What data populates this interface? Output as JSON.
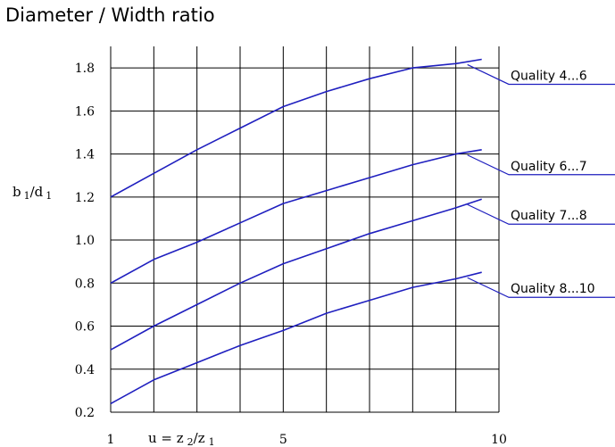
{
  "chart_data": {
    "type": "line",
    "title": "Diameter / Width ratio",
    "ylabel": {
      "main1": "b",
      "sub1": "1",
      "slash": "/d",
      "sub2": "1"
    },
    "xlabel": {
      "prefix": "u = z",
      "sub1": "2",
      "mid": "/z",
      "sub2": "1"
    },
    "x_tick_labels": [
      {
        "x": 1,
        "label": "1"
      },
      {
        "x": 5,
        "label": "5"
      },
      {
        "x": 10,
        "label": "10"
      }
    ],
    "y_tick_labels": [
      "1.8",
      "1.6",
      "1.4",
      "1.2",
      "1.0",
      "0.8",
      "0.6",
      "0.4",
      "0.2"
    ],
    "y_ticks": [
      1.8,
      1.6,
      1.4,
      1.2,
      1.0,
      0.8,
      0.6,
      0.4,
      0.2
    ],
    "xlim": [
      1,
      10
    ],
    "ylim": [
      0.2,
      1.9
    ],
    "x_grid": [
      1,
      2,
      3,
      4,
      5,
      6,
      7,
      8,
      9,
      10
    ],
    "grid": true,
    "series": [
      {
        "name": "Quality  4...6",
        "x": [
          1,
          2,
          3,
          4,
          5,
          6,
          7,
          8,
          9,
          9.6
        ],
        "values": [
          1.2,
          1.31,
          1.42,
          1.52,
          1.62,
          1.69,
          1.75,
          1.8,
          1.82,
          1.84
        ]
      },
      {
        "name": "Quality  6...7",
        "x": [
          1,
          2,
          3,
          4,
          5,
          6,
          7,
          8,
          9,
          9.6
        ],
        "values": [
          0.8,
          0.91,
          0.99,
          1.08,
          1.17,
          1.23,
          1.29,
          1.35,
          1.4,
          1.42
        ]
      },
      {
        "name": "Quality  7...8",
        "x": [
          1,
          2,
          3,
          4,
          5,
          6,
          7,
          8,
          9,
          9.6
        ],
        "values": [
          0.49,
          0.6,
          0.7,
          0.8,
          0.89,
          0.96,
          1.03,
          1.09,
          1.15,
          1.19
        ]
      },
      {
        "name": "Quality  8...10",
        "x": [
          1,
          2,
          3,
          4,
          5,
          6,
          7,
          8,
          9,
          9.6
        ],
        "values": [
          0.24,
          0.35,
          0.43,
          0.51,
          0.58,
          0.66,
          0.72,
          0.78,
          0.82,
          0.85
        ]
      }
    ],
    "line_color": "#1f1fbf",
    "grid_color": "#000000"
  }
}
